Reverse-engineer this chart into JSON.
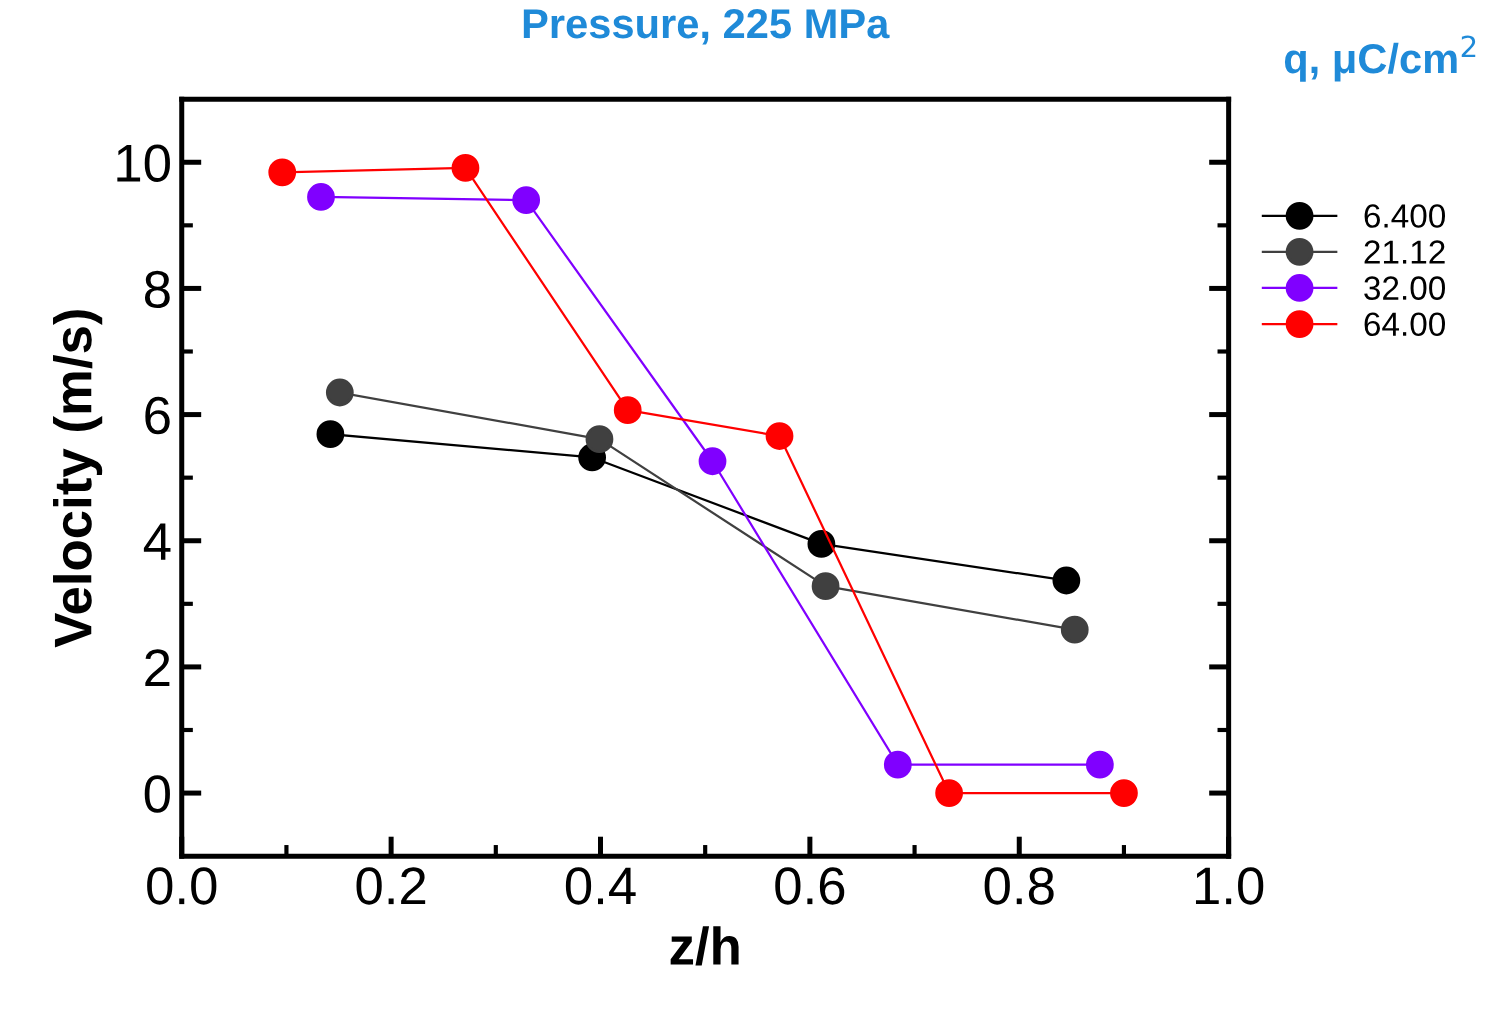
{
  "chart_data": {
    "type": "line",
    "title": "Pressure, 225 MPa",
    "xlabel": "z/h",
    "ylabel": "Velocity (m/s)",
    "legend_title": "q, μC/cm$^{2}$",
    "xlim": [
      0,
      1
    ],
    "xticks": [
      {
        "value": 0,
        "label": "0.0"
      },
      {
        "value": 0.2,
        "label": "0.2"
      },
      {
        "value": 0.4,
        "label": "0.4"
      },
      {
        "value": 0.6,
        "label": "0.6"
      },
      {
        "value": 0.8,
        "label": "0.8"
      },
      {
        "value": 1,
        "label": "1.0"
      }
    ],
    "ylim": [
      -1,
      11
    ],
    "yticks": [
      0,
      2,
      4,
      6,
      8,
      10
    ],
    "marker": "circle",
    "line_style": "solid",
    "grid": false,
    "legend": "top right",
    "series": [
      {
        "name": "6.400",
        "color": "#000000",
        "x": [
          0.142,
          0.392,
          0.611,
          0.845
        ],
        "values": [
          5.69,
          5.32,
          3.95,
          3.37
        ]
      },
      {
        "name": "21.12",
        "color": "#404040",
        "x": [
          0.151,
          0.399,
          0.615,
          0.853
        ],
        "values": [
          6.35,
          5.61,
          3.28,
          2.59
        ]
      },
      {
        "name": "32.00",
        "color": "#8000ff",
        "x": [
          0.133,
          0.329,
          0.507,
          0.684,
          0.877
        ],
        "values": [
          9.45,
          9.4,
          5.26,
          0.45,
          0.45
        ]
      },
      {
        "name": "64.00",
        "color": "#ff0000",
        "x": [
          0.096,
          0.271,
          0.426,
          0.571,
          0.733,
          0.9
        ],
        "values": [
          9.84,
          9.91,
          6.07,
          5.66,
          0.0,
          0.0
        ]
      }
    ]
  }
}
